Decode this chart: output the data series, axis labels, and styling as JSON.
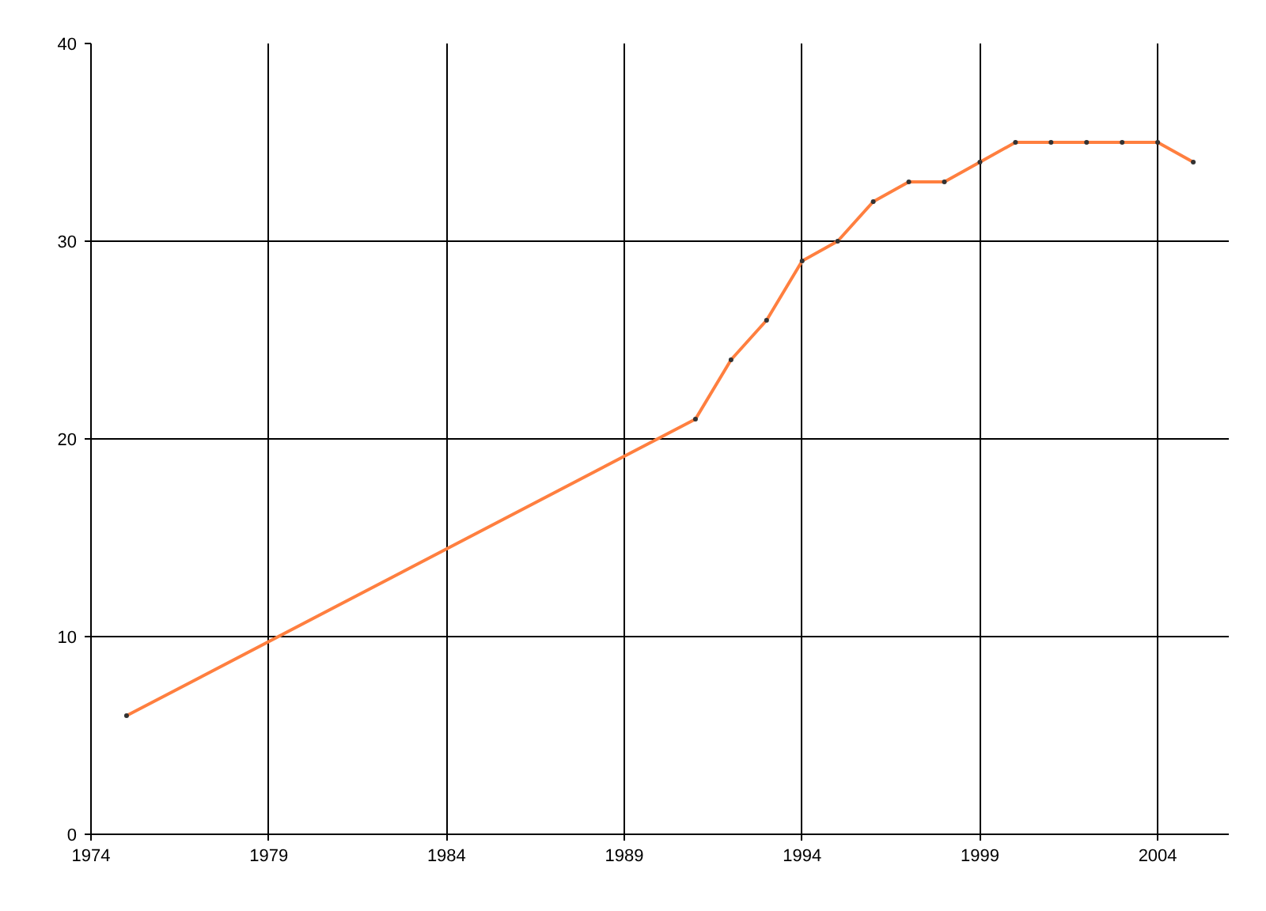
{
  "chart_data": {
    "type": "line",
    "x": [
      1975,
      1991,
      1992,
      1993,
      1994,
      1995,
      1996,
      1997,
      1998,
      1999,
      2000,
      2001,
      2002,
      2003,
      2004,
      2005
    ],
    "series": [
      {
        "color": "#ff7f3f",
        "values": [
          6,
          21,
          24,
          26,
          29,
          30,
          32,
          33,
          33,
          34,
          35,
          35,
          35,
          35,
          35,
          34
        ]
      }
    ],
    "xlim": [
      1974,
      2006
    ],
    "xticks": [
      1974,
      1979,
      1984,
      1989,
      1994,
      1999,
      2004
    ],
    "ylim": [
      0,
      40
    ],
    "yticks": [
      0,
      10,
      20,
      30,
      40
    ],
    "grid": true,
    "marker": "circle",
    "line_style": "solid"
  }
}
